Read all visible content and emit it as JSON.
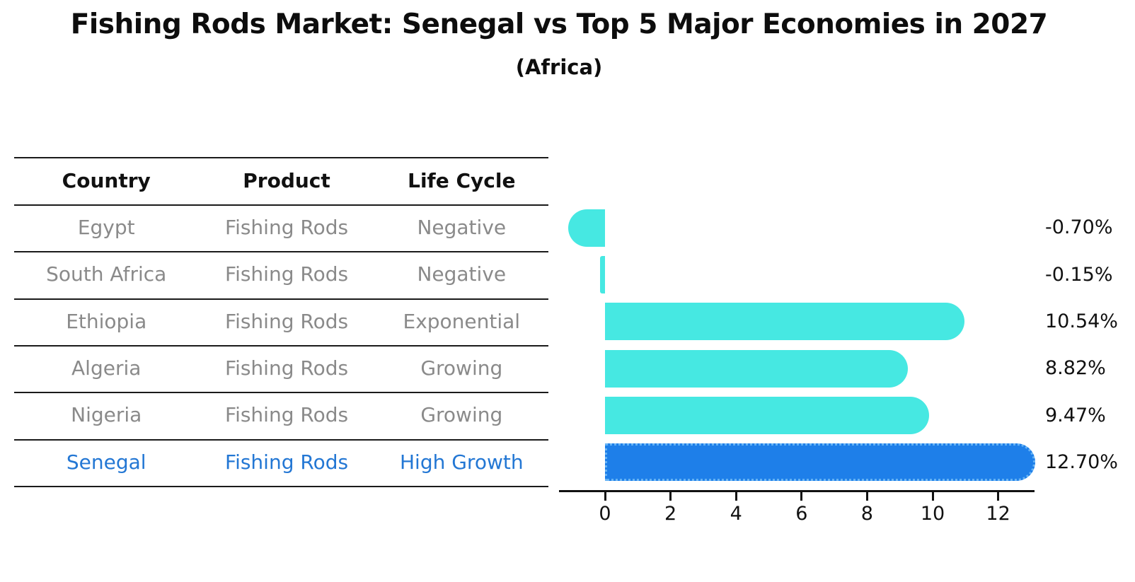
{
  "title": "Fishing Rods Market: Senegal vs Top 5 Major Economies in 2027",
  "subtitle": "(Africa)",
  "table": {
    "headers": [
      "Country",
      "Product",
      "Life Cycle"
    ],
    "rows": [
      {
        "country": "Egypt",
        "product": "Fishing Rods",
        "life_cycle": "Negative",
        "highlighted": false
      },
      {
        "country": "South Africa",
        "product": "Fishing Rods",
        "life_cycle": "Negative",
        "highlighted": false
      },
      {
        "country": "Ethiopia",
        "product": "Fishing Rods",
        "life_cycle": "Exponential",
        "highlighted": false
      },
      {
        "country": "Algeria",
        "product": "Fishing Rods",
        "life_cycle": "Growing",
        "highlighted": false
      },
      {
        "country": "Nigeria",
        "product": "Fishing Rods",
        "life_cycle": "Growing",
        "highlighted": false
      },
      {
        "country": "Senegal",
        "product": "Fishing Rods",
        "life_cycle": "High Growth",
        "highlighted": true
      }
    ]
  },
  "chart_data": {
    "type": "bar",
    "orientation": "horizontal",
    "title": "Fishing Rods Market: Senegal vs Top 5 Major Economies in 2027",
    "subtitle": "(Africa)",
    "categories": [
      "Egypt",
      "South Africa",
      "Ethiopia",
      "Algeria",
      "Nigeria",
      "Senegal"
    ],
    "values": [
      -0.7,
      -0.15,
      10.54,
      8.82,
      9.47,
      12.7
    ],
    "value_labels": [
      "-0.70%",
      "-0.15%",
      "10.54%",
      "8.82%",
      "9.47%",
      "12.70%"
    ],
    "x_ticks": [
      0,
      2,
      4,
      6,
      8,
      10,
      12
    ],
    "xlim": [
      -1.5,
      13.4
    ],
    "unit": "percent",
    "highlight_category": "Senegal",
    "legend": "none",
    "grid": false
  },
  "colors": {
    "bar": "#46E8E2",
    "highlight_bar": "#1E7FE9",
    "highlight_border": "#66B3F5",
    "highlight_text": "#2377D4",
    "row_text": "#8A8A8A",
    "header_text": "#111111",
    "axis": "#111111",
    "separator_line": "#1A1A1A",
    "background": "#FFFFFF"
  }
}
